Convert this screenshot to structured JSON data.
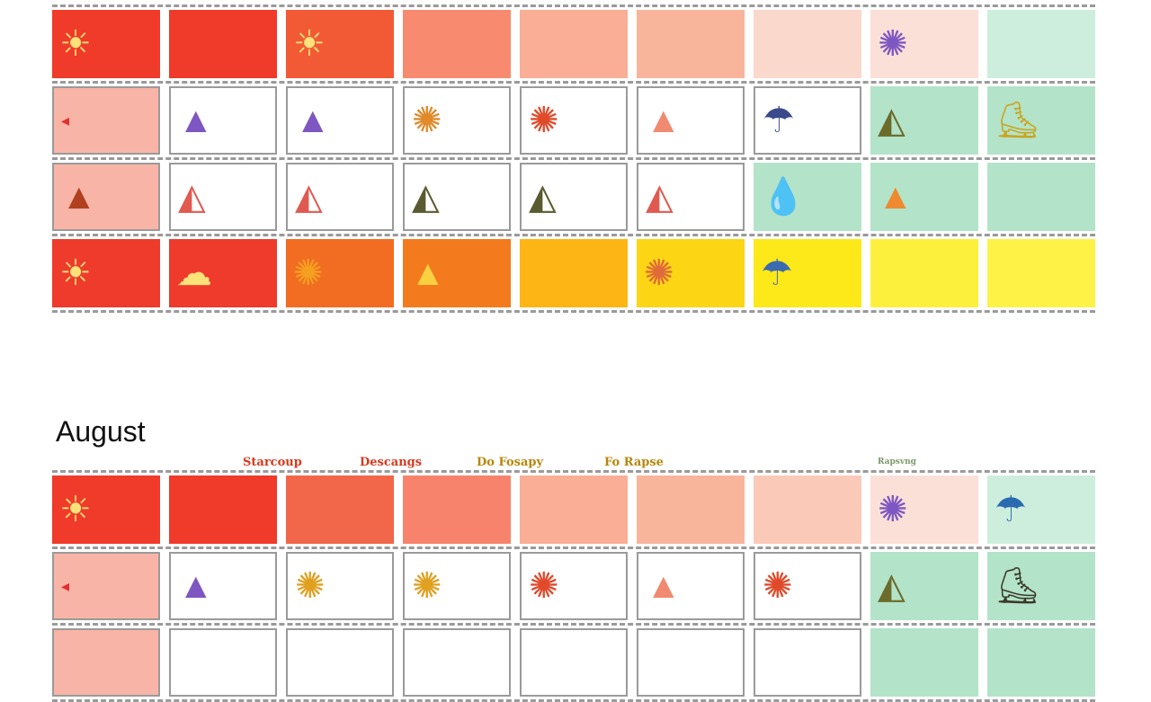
{
  "month_label": "August",
  "column_headers": [
    {
      "text": "Starcoup",
      "color": "#d63a1f"
    },
    {
      "text": "Descangs",
      "color": "#d63a1f"
    },
    {
      "text": "Do Fosapy",
      "color": "#b8860b"
    },
    {
      "text": "Fo Rapse",
      "color": "#b8860b"
    },
    {
      "text": "Rapsvng",
      "color": "#7a9a6a"
    }
  ],
  "icon_glyphs": {
    "sun": "☀",
    "drop": "💧",
    "blob": "▲",
    "tent": "◭",
    "boot": "⛸",
    "rain": "☂",
    "spark": "✺",
    "cloud": "☁",
    "tiny": "◂",
    "none": ""
  },
  "sections": [
    {
      "rows": [
        [
          [
            "#f03a2a",
            "sun",
            "#fde27a"
          ],
          [
            "#f03a2a",
            "none",
            ""
          ],
          [
            "#f25a35",
            "sun",
            "#fde27a"
          ],
          [
            "#f88a70",
            "none",
            ""
          ],
          [
            "#f9ae95",
            "none",
            ""
          ],
          [
            "#f9b59c",
            "none",
            ""
          ],
          [
            "#fbd8cc",
            "none",
            ""
          ],
          [
            "#fbe0d8",
            "spark",
            "#7e57c2"
          ],
          [
            "#cdeedd",
            "none",
            ""
          ]
        ],
        [
          [
            "#f8b4a6",
            "tiny",
            "#e03030",
            1
          ],
          [
            "#ffffff",
            "blob",
            "#7e57c2",
            1
          ],
          [
            "#ffffff",
            "blob",
            "#7e57c2",
            1
          ],
          [
            "#ffffff",
            "spark",
            "#e08a2a",
            1
          ],
          [
            "#ffffff",
            "spark",
            "#e04a2a",
            1
          ],
          [
            "#ffffff",
            "blob",
            "#f08a70",
            1
          ],
          [
            "#ffffff",
            "rain",
            "#3a4a8a",
            1
          ],
          [
            "#b3e3c9",
            "tent",
            "#6b6b2a"
          ],
          [
            "#b3e3c9",
            "boot",
            "#c9a520"
          ]
        ],
        [
          [
            "#f8b4a6",
            "blob",
            "#b04020",
            1
          ],
          [
            "#ffffff",
            "tent",
            "#e05a50",
            1
          ],
          [
            "#ffffff",
            "tent",
            "#e05a50",
            1
          ],
          [
            "#ffffff",
            "tent",
            "#5a5a30",
            1
          ],
          [
            "#ffffff",
            "tent",
            "#5a5a30",
            1
          ],
          [
            "#ffffff",
            "tent",
            "#e05a50",
            1
          ],
          [
            "#b3e3c9",
            "drop",
            "#1f5fb0"
          ],
          [
            "#b3e3c9",
            "blob",
            "#f08a30"
          ],
          [
            "#b3e3c9",
            "none",
            ""
          ]
        ],
        [
          [
            "#ef3b2c",
            "sun",
            "#fde27a"
          ],
          [
            "#ef3b2c",
            "cloud",
            "#fde27a"
          ],
          [
            "#f26c22",
            "spark",
            "#f5a020"
          ],
          [
            "#f47a1e",
            "blob",
            "#f8d040"
          ],
          [
            "#fdb515",
            "none",
            ""
          ],
          [
            "#fcd514",
            "spark",
            "#e06a3a"
          ],
          [
            "#fde81a",
            "rain",
            "#3a6ab0"
          ],
          [
            "#fdf03c",
            "none",
            ""
          ],
          [
            "#fdf245",
            "none",
            ""
          ]
        ]
      ]
    },
    {
      "rows": [
        [
          [
            "#f03a2a",
            "sun",
            "#fde27a"
          ],
          [
            "#f03a2a",
            "none",
            ""
          ],
          [
            "#f2664a",
            "none",
            ""
          ],
          [
            "#f8836c",
            "none",
            ""
          ],
          [
            "#f9ae95",
            "none",
            ""
          ],
          [
            "#f9b59c",
            "none",
            ""
          ],
          [
            "#fbc9b8",
            "none",
            ""
          ],
          [
            "#fbe0d8",
            "spark",
            "#7e57c2"
          ],
          [
            "#cdeedd",
            "rain",
            "#2a6ab0"
          ]
        ],
        [
          [
            "#f8b4a6",
            "tiny",
            "#e03030",
            1
          ],
          [
            "#ffffff",
            "blob",
            "#7e57c2",
            1
          ],
          [
            "#ffffff",
            "spark",
            "#e0a020",
            1
          ],
          [
            "#ffffff",
            "spark",
            "#e0a020",
            1
          ],
          [
            "#ffffff",
            "spark",
            "#e04a2a",
            1
          ],
          [
            "#ffffff",
            "blob",
            "#f08a70",
            1
          ],
          [
            "#ffffff",
            "spark",
            "#e04a2a",
            1
          ],
          [
            "#b3e3c9",
            "tent",
            "#6b6b2a"
          ],
          [
            "#b3e3c9",
            "boot",
            "#3a3a2a"
          ]
        ],
        [
          [
            "#f8b4a6",
            "none",
            "",
            1
          ],
          [
            "#ffffff",
            "none",
            "",
            1
          ],
          [
            "#ffffff",
            "none",
            "",
            1
          ],
          [
            "#ffffff",
            "none",
            "",
            1
          ],
          [
            "#ffffff",
            "none",
            "",
            1
          ],
          [
            "#ffffff",
            "none",
            "",
            1
          ],
          [
            "#ffffff",
            "none",
            "",
            1
          ],
          [
            "#b3e3c9",
            "none",
            ""
          ],
          [
            "#b3e3c9",
            "none",
            ""
          ]
        ]
      ]
    }
  ]
}
